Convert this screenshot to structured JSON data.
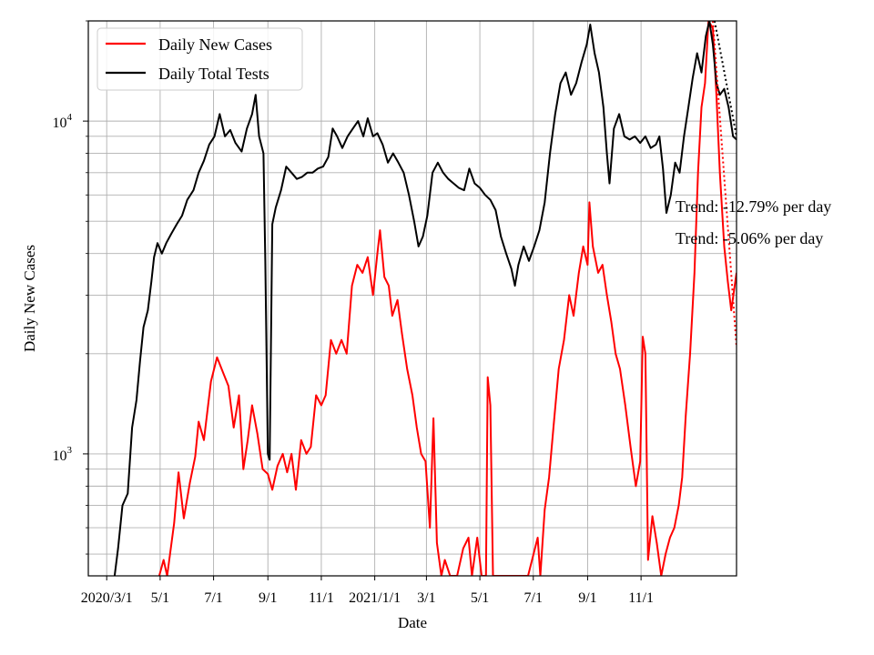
{
  "chart_data": {
    "type": "line",
    "xlabel": "Date",
    "ylabel": "Daily New Cases",
    "y_scale": "log",
    "ylim": [
      430,
      20000
    ],
    "xlim": [
      "2020-02-09",
      "2022-02-18"
    ],
    "grid": true,
    "legend_position": "top-left",
    "x_ticks": [
      {
        "date": "2020-03-01",
        "label": "2020/3/1"
      },
      {
        "date": "2020-05-01",
        "label": "5/1"
      },
      {
        "date": "2020-07-01",
        "label": "7/1"
      },
      {
        "date": "2020-09-01",
        "label": "9/1"
      },
      {
        "date": "2020-11-01",
        "label": "11/1"
      },
      {
        "date": "2021-01-01",
        "label": "2021/1/1"
      },
      {
        "date": "2021-03-01",
        "label": "3/1"
      },
      {
        "date": "2021-05-01",
        "label": "5/1"
      },
      {
        "date": "2021-07-01",
        "label": "7/1"
      },
      {
        "date": "2021-09-01",
        "label": "9/1"
      },
      {
        "date": "2021-11-01",
        "label": "11/1"
      }
    ],
    "y_major_ticks": [
      {
        "value": 1000,
        "label_base": "10",
        "label_exp": "3"
      },
      {
        "value": 10000,
        "label_base": "10",
        "label_exp": "4"
      }
    ],
    "y_minor_ticks": [
      500,
      600,
      700,
      800,
      900,
      2000,
      3000,
      4000,
      5000,
      6000,
      7000,
      8000,
      9000,
      20000
    ],
    "series": [
      {
        "name": "Daily New Cases",
        "color": "#ff0000",
        "points": [
          [
            "2020-04-30",
            430
          ],
          [
            "2020-05-05",
            480
          ],
          [
            "2020-05-09",
            430
          ],
          [
            "2020-05-17",
            620
          ],
          [
            "2020-05-22",
            880
          ],
          [
            "2020-05-28",
            640
          ],
          [
            "2020-06-04",
            820
          ],
          [
            "2020-06-10",
            980
          ],
          [
            "2020-06-14",
            1250
          ],
          [
            "2020-06-20",
            1100
          ],
          [
            "2020-06-28",
            1650
          ],
          [
            "2020-07-05",
            1950
          ],
          [
            "2020-07-12",
            1750
          ],
          [
            "2020-07-18",
            1600
          ],
          [
            "2020-07-24",
            1200
          ],
          [
            "2020-07-30",
            1500
          ],
          [
            "2020-08-04",
            900
          ],
          [
            "2020-08-09",
            1100
          ],
          [
            "2020-08-14",
            1400
          ],
          [
            "2020-08-20",
            1150
          ],
          [
            "2020-08-26",
            900
          ],
          [
            "2020-09-01",
            870
          ],
          [
            "2020-09-06",
            780
          ],
          [
            "2020-09-12",
            920
          ],
          [
            "2020-09-18",
            1000
          ],
          [
            "2020-09-23",
            880
          ],
          [
            "2020-09-28",
            1000
          ],
          [
            "2020-10-03",
            780
          ],
          [
            "2020-10-09",
            1100
          ],
          [
            "2020-10-15",
            1000
          ],
          [
            "2020-10-20",
            1050
          ],
          [
            "2020-10-26",
            1500
          ],
          [
            "2020-11-01",
            1400
          ],
          [
            "2020-11-06",
            1500
          ],
          [
            "2020-11-12",
            2200
          ],
          [
            "2020-11-18",
            2000
          ],
          [
            "2020-11-24",
            2200
          ],
          [
            "2020-11-30",
            2000
          ],
          [
            "2020-12-06",
            3200
          ],
          [
            "2020-12-12",
            3700
          ],
          [
            "2020-12-18",
            3500
          ],
          [
            "2020-12-24",
            3900
          ],
          [
            "2020-12-30",
            3000
          ],
          [
            "2021-01-04",
            4000
          ],
          [
            "2021-01-07",
            4700
          ],
          [
            "2021-01-12",
            3400
          ],
          [
            "2021-01-17",
            3200
          ],
          [
            "2021-01-21",
            2600
          ],
          [
            "2021-01-27",
            2900
          ],
          [
            "2021-02-01",
            2300
          ],
          [
            "2021-02-07",
            1800
          ],
          [
            "2021-02-13",
            1500
          ],
          [
            "2021-02-18",
            1200
          ],
          [
            "2021-02-23",
            1000
          ],
          [
            "2021-02-28",
            950
          ],
          [
            "2021-03-05",
            600
          ],
          [
            "2021-03-09",
            1280
          ],
          [
            "2021-03-13",
            540
          ],
          [
            "2021-03-18",
            430
          ],
          [
            "2021-03-22",
            480
          ],
          [
            "2021-03-28",
            430
          ],
          [
            "2021-04-05",
            430
          ],
          [
            "2021-04-12",
            520
          ],
          [
            "2021-04-18",
            560
          ],
          [
            "2021-04-22",
            430
          ],
          [
            "2021-04-28",
            560
          ],
          [
            "2021-05-03",
            430
          ],
          [
            "2021-05-08",
            430
          ],
          [
            "2021-05-10",
            1700
          ],
          [
            "2021-05-13",
            1400
          ],
          [
            "2021-05-16",
            430
          ],
          [
            "2021-06-25",
            430
          ],
          [
            "2021-07-06",
            560
          ],
          [
            "2021-07-09",
            430
          ],
          [
            "2021-07-14",
            680
          ],
          [
            "2021-07-19",
            850
          ],
          [
            "2021-07-24",
            1200
          ],
          [
            "2021-07-30",
            1800
          ],
          [
            "2021-08-05",
            2200
          ],
          [
            "2021-08-11",
            3000
          ],
          [
            "2021-08-16",
            2600
          ],
          [
            "2021-08-22",
            3500
          ],
          [
            "2021-08-27",
            4200
          ],
          [
            "2021-09-01",
            3700
          ],
          [
            "2021-09-03",
            5700
          ],
          [
            "2021-09-07",
            4200
          ],
          [
            "2021-09-13",
            3500
          ],
          [
            "2021-09-18",
            3700
          ],
          [
            "2021-09-23",
            3000
          ],
          [
            "2021-09-28",
            2500
          ],
          [
            "2021-10-03",
            2000
          ],
          [
            "2021-10-08",
            1800
          ],
          [
            "2021-10-14",
            1400
          ],
          [
            "2021-10-20",
            1050
          ],
          [
            "2021-10-26",
            800
          ],
          [
            "2021-10-31",
            950
          ],
          [
            "2021-11-03",
            2250
          ],
          [
            "2021-11-06",
            2000
          ],
          [
            "2021-11-09",
            480
          ],
          [
            "2021-11-14",
            650
          ],
          [
            "2021-11-19",
            540
          ],
          [
            "2021-11-24",
            430
          ],
          [
            "2021-11-29",
            500
          ],
          [
            "2021-12-04",
            560
          ],
          [
            "2021-12-09",
            600
          ],
          [
            "2021-12-14",
            700
          ],
          [
            "2021-12-18",
            850
          ],
          [
            "2021-12-22",
            1300
          ],
          [
            "2021-12-27",
            2000
          ],
          [
            "2022-01-01",
            3500
          ],
          [
            "2022-01-05",
            7000
          ],
          [
            "2022-01-09",
            11000
          ],
          [
            "2022-01-13",
            13000
          ],
          [
            "2022-01-17",
            20000
          ],
          [
            "2022-01-22",
            19000
          ],
          [
            "2022-01-26",
            12000
          ],
          [
            "2022-01-30",
            7000
          ],
          [
            "2022-02-04",
            4200
          ],
          [
            "2022-02-08",
            3300
          ],
          [
            "2022-02-12",
            2700
          ],
          [
            "2022-02-18",
            3500
          ]
        ]
      },
      {
        "name": "Daily Total Tests",
        "color": "#000000",
        "points": [
          [
            "2020-03-10",
            430
          ],
          [
            "2020-03-14",
            520
          ],
          [
            "2020-03-19",
            700
          ],
          [
            "2020-03-25",
            760
          ],
          [
            "2020-03-30",
            1200
          ],
          [
            "2020-04-04",
            1450
          ],
          [
            "2020-04-08",
            1900
          ],
          [
            "2020-04-12",
            2400
          ],
          [
            "2020-04-17",
            2700
          ],
          [
            "2020-04-21",
            3300
          ],
          [
            "2020-04-24",
            3900
          ],
          [
            "2020-04-28",
            4300
          ],
          [
            "2020-05-03",
            4000
          ],
          [
            "2020-05-08",
            4300
          ],
          [
            "2020-05-14",
            4600
          ],
          [
            "2020-05-20",
            4900
          ],
          [
            "2020-05-26",
            5200
          ],
          [
            "2020-06-01",
            5800
          ],
          [
            "2020-06-08",
            6200
          ],
          [
            "2020-06-14",
            7000
          ],
          [
            "2020-06-20",
            7600
          ],
          [
            "2020-06-26",
            8500
          ],
          [
            "2020-07-02",
            9000
          ],
          [
            "2020-07-08",
            10500
          ],
          [
            "2020-07-14",
            9000
          ],
          [
            "2020-07-20",
            9400
          ],
          [
            "2020-07-26",
            8600
          ],
          [
            "2020-08-02",
            8100
          ],
          [
            "2020-08-08",
            9500
          ],
          [
            "2020-08-14",
            10500
          ],
          [
            "2020-08-18",
            12000
          ],
          [
            "2020-08-22",
            9000
          ],
          [
            "2020-08-27",
            8000
          ],
          [
            "2020-08-29",
            3800
          ],
          [
            "2020-09-01",
            1000
          ],
          [
            "2020-09-03",
            960
          ],
          [
            "2020-09-06",
            4900
          ],
          [
            "2020-09-10",
            5500
          ],
          [
            "2020-09-16",
            6200
          ],
          [
            "2020-09-22",
            7300
          ],
          [
            "2020-09-28",
            7000
          ],
          [
            "2020-10-04",
            6700
          ],
          [
            "2020-10-10",
            6800
          ],
          [
            "2020-10-16",
            7000
          ],
          [
            "2020-10-22",
            7000
          ],
          [
            "2020-10-28",
            7200
          ],
          [
            "2020-11-03",
            7300
          ],
          [
            "2020-11-09",
            7800
          ],
          [
            "2020-11-14",
            9500
          ],
          [
            "2020-11-19",
            9000
          ],
          [
            "2020-11-25",
            8300
          ],
          [
            "2020-12-01",
            9000
          ],
          [
            "2020-12-07",
            9500
          ],
          [
            "2020-12-13",
            10000
          ],
          [
            "2020-12-19",
            9000
          ],
          [
            "2020-12-24",
            10200
          ],
          [
            "2020-12-30",
            9000
          ],
          [
            "2021-01-04",
            9200
          ],
          [
            "2021-01-10",
            8500
          ],
          [
            "2021-01-16",
            7500
          ],
          [
            "2021-01-22",
            8000
          ],
          [
            "2021-01-28",
            7500
          ],
          [
            "2021-02-03",
            7000
          ],
          [
            "2021-02-09",
            6000
          ],
          [
            "2021-02-15",
            5000
          ],
          [
            "2021-02-20",
            4200
          ],
          [
            "2021-02-25",
            4500
          ],
          [
            "2021-03-02",
            5200
          ],
          [
            "2021-03-08",
            7000
          ],
          [
            "2021-03-14",
            7500
          ],
          [
            "2021-03-20",
            7000
          ],
          [
            "2021-03-26",
            6700
          ],
          [
            "2021-04-01",
            6500
          ],
          [
            "2021-04-07",
            6300
          ],
          [
            "2021-04-13",
            6200
          ],
          [
            "2021-04-19",
            7200
          ],
          [
            "2021-04-25",
            6500
          ],
          [
            "2021-05-01",
            6300
          ],
          [
            "2021-05-07",
            6000
          ],
          [
            "2021-05-13",
            5800
          ],
          [
            "2021-05-19",
            5400
          ],
          [
            "2021-05-25",
            4500
          ],
          [
            "2021-05-31",
            4000
          ],
          [
            "2021-06-06",
            3600
          ],
          [
            "2021-06-10",
            3200
          ],
          [
            "2021-06-14",
            3700
          ],
          [
            "2021-06-20",
            4200
          ],
          [
            "2021-06-26",
            3800
          ],
          [
            "2021-07-02",
            4200
          ],
          [
            "2021-07-08",
            4700
          ],
          [
            "2021-07-14",
            5700
          ],
          [
            "2021-07-20",
            8000
          ],
          [
            "2021-07-26",
            10500
          ],
          [
            "2021-08-01",
            13000
          ],
          [
            "2021-08-07",
            14000
          ],
          [
            "2021-08-13",
            12000
          ],
          [
            "2021-08-19",
            13000
          ],
          [
            "2021-08-25",
            15000
          ],
          [
            "2021-08-31",
            17000
          ],
          [
            "2021-09-04",
            19500
          ],
          [
            "2021-09-09",
            16000
          ],
          [
            "2021-09-14",
            14000
          ],
          [
            "2021-09-19",
            11000
          ],
          [
            "2021-09-23",
            8000
          ],
          [
            "2021-09-26",
            6500
          ],
          [
            "2021-10-01",
            9500
          ],
          [
            "2021-10-07",
            10500
          ],
          [
            "2021-10-13",
            9000
          ],
          [
            "2021-10-19",
            8800
          ],
          [
            "2021-10-25",
            9000
          ],
          [
            "2021-10-31",
            8600
          ],
          [
            "2021-11-06",
            9000
          ],
          [
            "2021-11-12",
            8300
          ],
          [
            "2021-11-18",
            8500
          ],
          [
            "2021-11-22",
            9000
          ],
          [
            "2021-11-26",
            7200
          ],
          [
            "2021-11-30",
            5300
          ],
          [
            "2021-12-05",
            6000
          ],
          [
            "2021-12-10",
            7500
          ],
          [
            "2021-12-15",
            7000
          ],
          [
            "2021-12-20",
            9000
          ],
          [
            "2021-12-25",
            11000
          ],
          [
            "2021-12-30",
            13500
          ],
          [
            "2022-01-04",
            16000
          ],
          [
            "2022-01-09",
            14000
          ],
          [
            "2022-01-14",
            18000
          ],
          [
            "2022-01-18",
            20000
          ],
          [
            "2022-01-22",
            17000
          ],
          [
            "2022-01-26",
            13000
          ],
          [
            "2022-01-30",
            12000
          ],
          [
            "2022-02-04",
            12500
          ],
          [
            "2022-02-09",
            11000
          ],
          [
            "2022-02-14",
            9000
          ],
          [
            "2022-02-18",
            8800
          ]
        ]
      }
    ],
    "legend": [
      {
        "label": "Daily New Cases",
        "color": "#ff0000"
      },
      {
        "label": "Daily Total Tests",
        "color": "#000000"
      }
    ],
    "trend_lines": [
      {
        "color": "#ff0000",
        "style": "dotted",
        "points": [
          [
            "2022-01-22",
            20000
          ],
          [
            "2022-02-18",
            2100
          ]
        ]
      },
      {
        "color": "#000000",
        "style": "dotted",
        "points": [
          [
            "2022-01-24",
            20000
          ],
          [
            "2022-02-18",
            9000
          ]
        ]
      }
    ],
    "annotations": [
      "Trend: -12.79% per day",
      "Trend: -5.06% per day"
    ]
  }
}
